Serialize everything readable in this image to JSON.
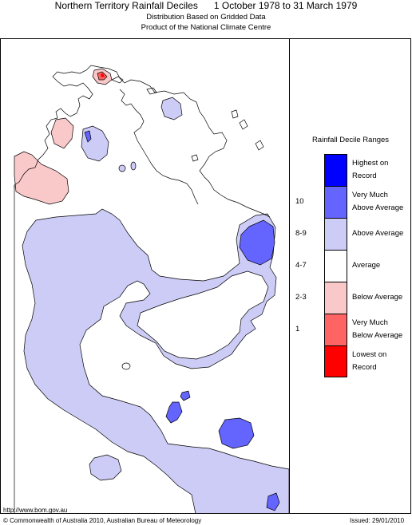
{
  "header": {
    "title": "Northern Territory Rainfall Deciles      1 October 1978 to 31 March 1979",
    "subtitle1": "Distribution Based on Gridded Data",
    "subtitle2": "Product of the National Climate Centre"
  },
  "legend": {
    "title": "Rainfall Decile Ranges",
    "items": [
      {
        "range": "",
        "label": "Highest on Record",
        "color": "#0000ff"
      },
      {
        "range": "10",
        "label": "Very Much Above Average",
        "color": "#6464ff"
      },
      {
        "range": "8-9",
        "label": "Above Average",
        "color": "#ccccf6"
      },
      {
        "range": "4-7",
        "label": "Average",
        "color": "#ffffff"
      },
      {
        "range": "2-3",
        "label": "Below Average",
        "color": "#f9c8c8"
      },
      {
        "range": "1",
        "label": "Very Much Below Average",
        "color": "#ff6464"
      },
      {
        "range": "",
        "label": "Lowest on Record",
        "color": "#ff0000"
      }
    ]
  },
  "footer": {
    "url": "http://www.bom.gov.au",
    "copyright": "© Commonwealth of Australia 2010, Australian Bureau of Meteorology",
    "issued": "Issued: 29/01/2010"
  }
}
